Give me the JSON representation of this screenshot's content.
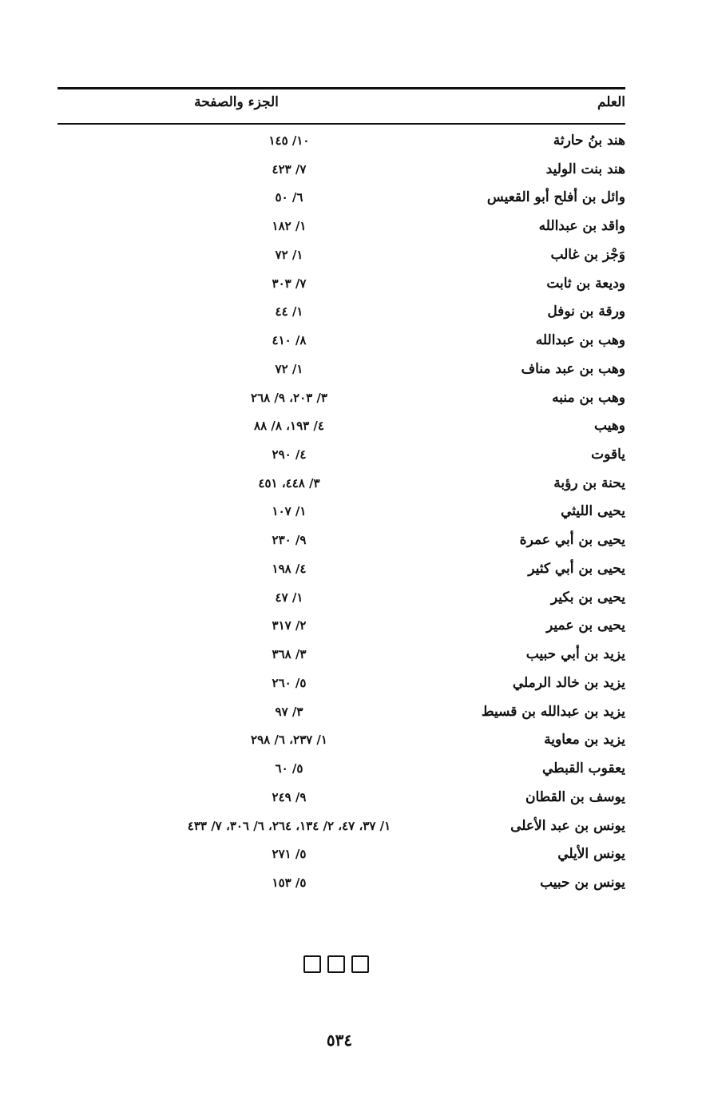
{
  "header": {
    "name_col": "العلم",
    "ref_col": "الجزء والصفحة"
  },
  "rows": [
    {
      "name": "هند بنُ حارثة",
      "ref": "١٠/ ١٤٥"
    },
    {
      "name": "هند بنت الوليد",
      "ref": "٧/ ٤٢٣"
    },
    {
      "name": "وائل بن أفلح أبو القعيس",
      "ref": "٦/ ٥٠"
    },
    {
      "name": "واقد بن عبدالله",
      "ref": "١/ ١٨٢"
    },
    {
      "name": "وَجْز بن غالب",
      "ref": "١/ ٧٢"
    },
    {
      "name": "وديعة بن ثابت",
      "ref": "٧/ ٣٠٣"
    },
    {
      "name": "ورقة بن نوفل",
      "ref": "١/ ٤٤"
    },
    {
      "name": "وهب بن عبدالله",
      "ref": "٨/ ٤١٠"
    },
    {
      "name": "وهب بن عبد مناف",
      "ref": "١/ ٧٢"
    },
    {
      "name": "وهب بن منبه",
      "ref": "٣/ ٢٠٣، ٩/ ٢٦٨"
    },
    {
      "name": "وهيب",
      "ref": "٤/ ١٩٣، ٨/ ٨٨"
    },
    {
      "name": "ياقوت",
      "ref": "٤/ ٢٩٠"
    },
    {
      "name": "يحنة بن رؤبة",
      "ref": "٣/ ٤٤٨، ٤٥١"
    },
    {
      "name": "يحيى الليثي",
      "ref": "١/ ١٠٧"
    },
    {
      "name": "يحيى بن أبي عمرة",
      "ref": "٩/ ٢٣٠"
    },
    {
      "name": "يحيى بن أبي كثير",
      "ref": "٤/ ١٩٨"
    },
    {
      "name": "يحيى بن بكير",
      "ref": "١/ ٤٧"
    },
    {
      "name": "يحيى بن عمير",
      "ref": "٢/ ٣١٧"
    },
    {
      "name": "يزيد بن أبي حبيب",
      "ref": "٣/ ٣٦٨"
    },
    {
      "name": "يزيد بن خالد الرملي",
      "ref": "٥/ ٢٦٠"
    },
    {
      "name": "يزيد بن عبدالله بن قسيط",
      "ref": "٣/ ٩٧"
    },
    {
      "name": "يزيد بن معاوية",
      "ref": "١/ ٢٣٧، ٦/ ٢٩٨"
    },
    {
      "name": "يعقوب القبطي",
      "ref": "٥/ ٦٠"
    },
    {
      "name": "يوسف بن القطان",
      "ref": "٩/ ٢٤٩"
    },
    {
      "name": "يونس بن عبد الأعلى",
      "ref": "١/ ٣٧، ٤٧، ٢/ ١٣٤، ٢٦٤، ٦/ ٣٠٦، ٧/ ٤٣٣"
    },
    {
      "name": "يونس الأيلي",
      "ref": "٥/ ٢٧١"
    },
    {
      "name": "يونس بن حبيب",
      "ref": "٥/ ١٥٣"
    }
  ],
  "footer": {
    "ornament": "square-ornaments",
    "page_number": "٥٣٤"
  }
}
